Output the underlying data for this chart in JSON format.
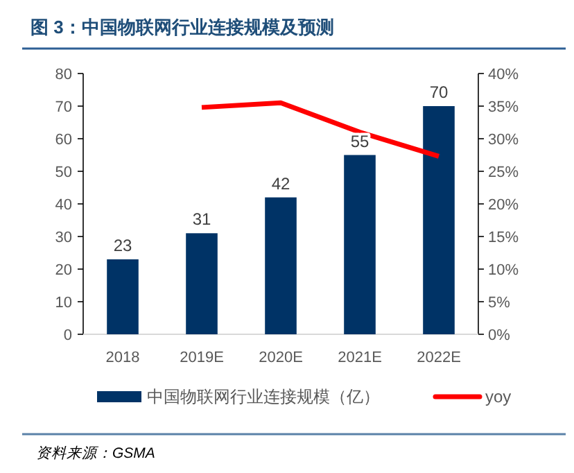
{
  "chart_data": {
    "type": "bar",
    "title": "图 3：中国物联网行业连接规模及预测",
    "categories": [
      "2018",
      "2019E",
      "2020E",
      "2021E",
      "2022E"
    ],
    "series": [
      {
        "name": "中国物联网行业连接规模（亿）",
        "color": "#003366",
        "values": [
          23,
          31,
          42,
          55,
          70
        ],
        "value_labels": [
          "23",
          "31",
          "42",
          "55",
          "70"
        ]
      },
      {
        "name": "yoy",
        "type": "line",
        "axis": "y2",
        "color": "#ff0000",
        "values": [
          null,
          34.8,
          35.5,
          31.0,
          27.3
        ]
      }
    ],
    "ylim": [
      0,
      80
    ],
    "yticks": [
      0,
      10,
      20,
      30,
      40,
      50,
      60,
      70,
      80
    ],
    "y2lim": [
      0,
      40
    ],
    "y2ticks": [
      {
        "value": 0,
        "label": "0%"
      },
      {
        "value": 5,
        "label": "5%"
      },
      {
        "value": 10,
        "label": "10%"
      },
      {
        "value": 15,
        "label": "15%"
      },
      {
        "value": 20,
        "label": "20%"
      },
      {
        "value": 25,
        "label": "25%"
      },
      {
        "value": 30,
        "label": "30%"
      },
      {
        "value": 35,
        "label": "35%"
      },
      {
        "value": 40,
        "label": "40%"
      }
    ],
    "legend": "bottom",
    "annotations": [
      "资料来源：GSMA"
    ]
  }
}
